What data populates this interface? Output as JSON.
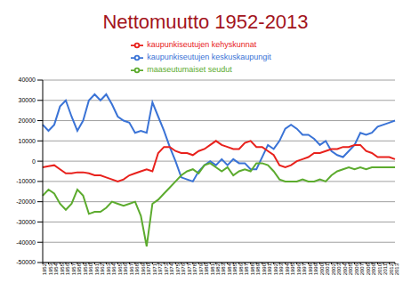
{
  "chart_data": {
    "type": "line",
    "title": "Nettomuutto 1952-2013",
    "categories": [
      "1952",
      "1953",
      "1954",
      "1955",
      "1956",
      "1957",
      "1958",
      "1959",
      "1960",
      "1961",
      "1962",
      "1963",
      "1964",
      "1965",
      "1966",
      "1967",
      "1968",
      "1969",
      "1970",
      "1971",
      "1972",
      "1973",
      "1974",
      "1975",
      "1976",
      "1977",
      "1978",
      "1979",
      "1980",
      "1981",
      "1982",
      "1983",
      "1984",
      "1985",
      "1986",
      "1987",
      "1988",
      "1989",
      "1990",
      "1991",
      "1992",
      "1993",
      "1994",
      "1995",
      "1996",
      "1997",
      "1998",
      "1999",
      "2000",
      "2001",
      "2002",
      "2003",
      "2004",
      "2005",
      "2006",
      "2007",
      "2008",
      "2009",
      "2010",
      "2011",
      "2012",
      "2013"
    ],
    "series": [
      {
        "name": "kaupunkiseutujen keskuskaupungit",
        "color": "#3a73d6",
        "values": [
          18000,
          15000,
          18000,
          27000,
          30000,
          22000,
          15000,
          20000,
          30000,
          33000,
          30000,
          33000,
          28000,
          22000,
          20000,
          19000,
          14000,
          15000,
          14000,
          29000,
          22000,
          15000,
          7000,
          0,
          -8000,
          -9000,
          -10000,
          -5000,
          -2000,
          0,
          -2000,
          1000,
          -2000,
          1000,
          -1000,
          -1000,
          -4000,
          -4000,
          2000,
          8000,
          6000,
          10000,
          16000,
          18000,
          16000,
          13000,
          13000,
          11000,
          8000,
          10000,
          5000,
          3000,
          2000,
          5000,
          8000,
          14000,
          13000,
          14000,
          17000,
          18000,
          19000,
          20000
        ]
      },
      {
        "name": "kaupunkiseutujen kehyskunnat",
        "color": "#e8211c",
        "values": [
          -3000,
          -2500,
          -2000,
          -4000,
          -6000,
          -6000,
          -5500,
          -5500,
          -6000,
          -7000,
          -7000,
          -8000,
          -9000,
          -10000,
          -9000,
          -7000,
          -6000,
          -5000,
          -4000,
          -5000,
          4000,
          7000,
          7000,
          5000,
          4000,
          4000,
          3000,
          5000,
          6000,
          8000,
          10000,
          8000,
          7000,
          6000,
          6000,
          9000,
          10000,
          7000,
          7000,
          5000,
          3000,
          -2000,
          -3000,
          -2000,
          0,
          1000,
          2000,
          4000,
          4000,
          5000,
          6000,
          6000,
          7000,
          7000,
          8000,
          8000,
          5000,
          4000,
          2000,
          2000,
          2000,
          1000
        ]
      },
      {
        "name": "maaseutumaiset seudut",
        "color": "#5cab2e",
        "values": [
          -17000,
          -14000,
          -16000,
          -21000,
          -24000,
          -21000,
          -14000,
          -17000,
          -26000,
          -25000,
          -25000,
          -23000,
          -20000,
          -21000,
          -22000,
          -21000,
          -20000,
          -27000,
          -42000,
          -21000,
          -19000,
          -16000,
          -13000,
          -10000,
          -7000,
          -5000,
          -4000,
          -6000,
          -2000,
          -1000,
          -3000,
          -5000,
          -3000,
          -7000,
          -5000,
          -4000,
          -5000,
          -1000,
          -1000,
          -2000,
          -5000,
          -9000,
          -10000,
          -10000,
          -10000,
          -9000,
          -10000,
          -10000,
          -9000,
          -10000,
          -7000,
          -5000,
          -4000,
          -3000,
          -4000,
          -3000,
          -4000,
          -3000,
          -3000,
          -3000,
          -3000,
          -3000
        ]
      }
    ],
    "ylim": [
      -50000,
      40000
    ],
    "yticks": [
      -50000,
      -40000,
      -30000,
      -20000,
      -10000,
      0,
      10000,
      20000,
      30000,
      40000
    ],
    "grid": true,
    "legend": "top"
  }
}
